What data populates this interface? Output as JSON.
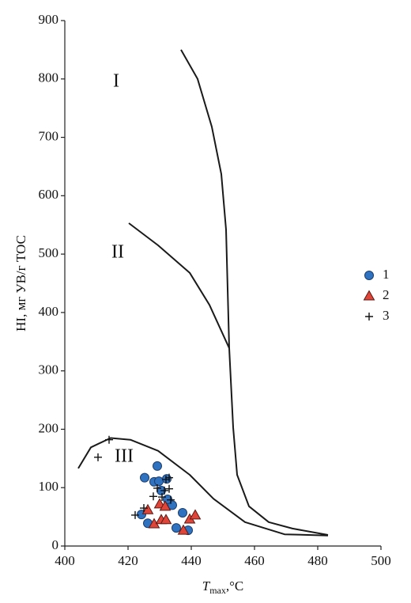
{
  "chart_data": {
    "type": "scatter",
    "ylabel": "HI, мг УВ/г ТОС",
    "xlabel_parts": [
      "T",
      "max",
      ",°C"
    ],
    "xlim": [
      400,
      500
    ],
    "ylim": [
      0,
      900
    ],
    "xticks": [
      400,
      420,
      440,
      460,
      480,
      500
    ],
    "yticks": [
      0,
      100,
      200,
      300,
      400,
      500,
      600,
      700,
      800,
      900
    ],
    "annotations": [
      "I",
      "II",
      "III"
    ],
    "curve_color": "#1a1a1a",
    "curves": [
      {
        "x": [
          436.75,
          442,
          446.5,
          449.5,
          451,
          452,
          453.25,
          454.5,
          458.25,
          464.5,
          472,
          483.25
        ],
        "values": [
          850,
          800,
          718,
          637,
          542,
          339,
          203,
          122,
          68,
          41,
          30,
          19
        ]
      },
      {
        "x": [
          420.25,
          429.5,
          439.5,
          445.75,
          452
        ],
        "values": [
          553,
          515,
          468,
          413,
          339
        ]
      },
      {
        "x": [
          404.25,
          408.25,
          414.5,
          420.75,
          429.5,
          439.5,
          447,
          457,
          469.5,
          483.25
        ],
        "values": [
          133,
          169,
          185,
          182,
          163,
          122,
          81,
          41,
          20,
          18
        ]
      }
    ],
    "series": [
      {
        "name": "1",
        "marker": "circle",
        "color": "#2f72c0",
        "x": [
          425.25,
          429.25,
          428.25,
          429.75,
          432.25,
          424.25,
          426.25,
          434,
          437.25,
          439,
          435.25,
          430.5,
          432.5
        ],
        "values": [
          117,
          137,
          110,
          111,
          115,
          54,
          39,
          70,
          57,
          27,
          31,
          95,
          80
        ]
      },
      {
        "name": "2",
        "marker": "triangle",
        "color": "#e0453a",
        "x": [
          426.25,
          428.25,
          430.5,
          432,
          430,
          431.75,
          437.5,
          439.5,
          441.25
        ],
        "values": [
          62,
          38,
          45,
          45,
          72,
          68,
          27,
          46,
          53
        ]
      },
      {
        "name": "3",
        "marker": "plus",
        "color": "#111111",
        "x": [
          410.5,
          414,
          422.25,
          425,
          428,
          429.25,
          430.75,
          432,
          433,
          433,
          433.5,
          431.5
        ],
        "values": [
          152,
          182,
          53,
          65,
          85,
          99,
          84,
          114,
          117,
          98,
          79,
          95
        ]
      }
    ]
  }
}
